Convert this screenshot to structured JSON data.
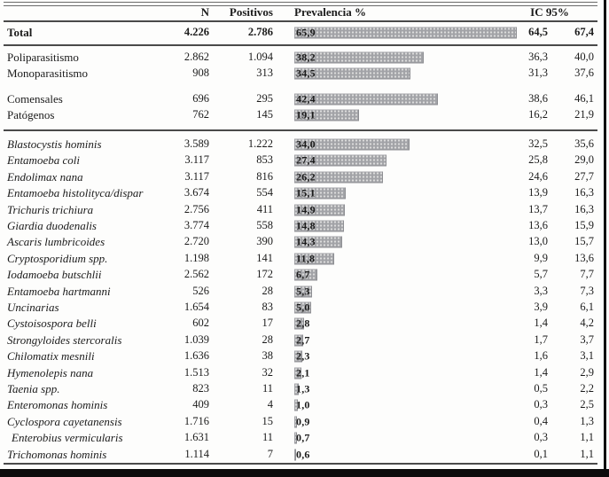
{
  "chart_data": {
    "type": "bar",
    "orientation": "horizontal",
    "value_unit": "percent",
    "xlim": [
      0,
      66
    ],
    "headers": {
      "n": "N",
      "positivos": "Positivos",
      "prevalencia": "Prevalencia %",
      "ic95": "IC 95%"
    },
    "sections": [
      {
        "name": "total",
        "rows": [
          {
            "label": "Total",
            "n": "4.226",
            "positivos": "2.786",
            "prevalencia": 65.9,
            "ic_low": "64,5",
            "ic_high": "67,4",
            "bold": true
          }
        ]
      },
      {
        "name": "parasitismo",
        "rows": [
          {
            "label": "Poliparasitismo",
            "n": "2.862",
            "positivos": "1.094",
            "prevalencia": 38.2,
            "ic_low": "36,3",
            "ic_high": "40,0"
          },
          {
            "label": "Monoparasitismo",
            "n": "908",
            "positivos": "313",
            "prevalencia": 34.5,
            "ic_low": "31,3",
            "ic_high": "37,6"
          }
        ]
      },
      {
        "name": "tipo",
        "rows": [
          {
            "label": "Comensales",
            "n": "696",
            "positivos": "295",
            "prevalencia": 42.4,
            "ic_low": "38,6",
            "ic_high": "46,1"
          },
          {
            "label": "Patógenos",
            "n": "762",
            "positivos": "145",
            "prevalencia": 19.1,
            "ic_low": "16,2",
            "ic_high": "21,9"
          }
        ]
      },
      {
        "name": "especies",
        "italic": true,
        "rows": [
          {
            "label": "Blastocystis hominis",
            "n": "3.589",
            "positivos": "1.222",
            "prevalencia": 34.0,
            "ic_low": "32,5",
            "ic_high": "35,6"
          },
          {
            "label": "Entamoeba coli",
            "n": "3.117",
            "positivos": "853",
            "prevalencia": 27.4,
            "ic_low": "25,8",
            "ic_high": "29,0"
          },
          {
            "label": "Endolimax nana",
            "n": "3.117",
            "positivos": "816",
            "prevalencia": 26.2,
            "ic_low": "24,6",
            "ic_high": "27,7"
          },
          {
            "label": "Entamoeba histolityca/dispar",
            "n": "3.674",
            "positivos": "554",
            "prevalencia": 15.1,
            "ic_low": "13,9",
            "ic_high": "16,3"
          },
          {
            "label": "Trichuris trichiura",
            "n": "2.756",
            "positivos": "411",
            "prevalencia": 14.9,
            "ic_low": "13,7",
            "ic_high": "16,3"
          },
          {
            "label": "Giardia duodenalis",
            "n": "3.774",
            "positivos": "558",
            "prevalencia": 14.8,
            "ic_low": "13,6",
            "ic_high": "15,9"
          },
          {
            "label": "Ascaris lumbricoides",
            "n": "2.720",
            "positivos": "390",
            "prevalencia": 14.3,
            "ic_low": "13,0",
            "ic_high": "15,7"
          },
          {
            "label": "Cryptosporidium spp.",
            "n": "1.198",
            "positivos": "141",
            "prevalencia": 11.8,
            "ic_low": "9,9",
            "ic_high": "13,6"
          },
          {
            "label": "Iodamoeba butschlii",
            "n": "2.562",
            "positivos": "172",
            "prevalencia": 6.7,
            "ic_low": "5,7",
            "ic_high": "7,7"
          },
          {
            "label": "Entamoeba hartmanni",
            "n": "526",
            "positivos": "28",
            "prevalencia": 5.3,
            "ic_low": "3,3",
            "ic_high": "7,3"
          },
          {
            "label": "Uncinarias",
            "n": "1.654",
            "positivos": "83",
            "prevalencia": 5.0,
            "ic_low": "3,9",
            "ic_high": "6,1"
          },
          {
            "label": "Cystoisospora belli",
            "n": "602",
            "positivos": "17",
            "prevalencia": 2.8,
            "ic_low": "1,4",
            "ic_high": "4,2"
          },
          {
            "label": "Strongyloides stercoralis",
            "n": "1.039",
            "positivos": "28",
            "prevalencia": 2.7,
            "ic_low": "1,7",
            "ic_high": "3,7"
          },
          {
            "label": "Chilomatix mesnili",
            "n": "1.636",
            "positivos": "38",
            "prevalencia": 2.3,
            "ic_low": "1,6",
            "ic_high": "3,1"
          },
          {
            "label": "Hymenolepis nana",
            "n": "1.513",
            "positivos": "32",
            "prevalencia": 2.1,
            "ic_low": "1,4",
            "ic_high": "2,9"
          },
          {
            "label": "Taenia spp.",
            "n": "823",
            "positivos": "11",
            "prevalencia": 1.3,
            "ic_low": "0,5",
            "ic_high": "2,2"
          },
          {
            "label": "Enteromonas hominis",
            "n": "409",
            "positivos": "4",
            "prevalencia": 1.0,
            "ic_low": "0,3",
            "ic_high": "2,5"
          },
          {
            "label": "Cyclospora cayetanensis",
            "n": "1.716",
            "positivos": "15",
            "prevalencia": 0.9,
            "ic_low": "0,4",
            "ic_high": "1,3"
          },
          {
            "label": "Enterobius vermicularis",
            "n": "1.631",
            "positivos": "11",
            "prevalencia": 0.7,
            "ic_low": "0,3",
            "ic_high": "1,1",
            "indent": true
          },
          {
            "label": "Trichomonas hominis",
            "n": "1.114",
            "positivos": "7",
            "prevalencia": 0.6,
            "ic_low": "0,1",
            "ic_high": "1,1"
          }
        ]
      }
    ]
  },
  "colors": {
    "bar_fill": "#a2a3a7",
    "bar_dot": "#dcdcdc",
    "rule": "#4a4a4a",
    "scan_edge": "#0c0c0c"
  }
}
